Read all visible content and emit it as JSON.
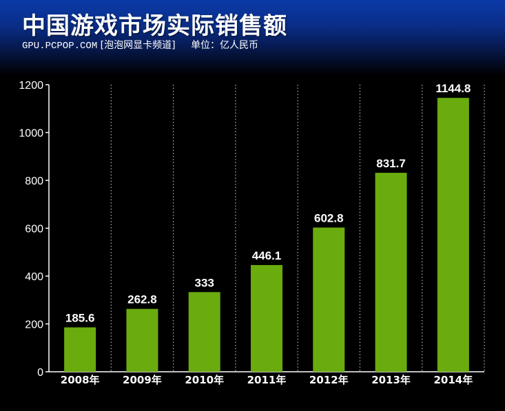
{
  "header": {
    "title": "中国游戏市场实际销售额",
    "source": "GPU.PCPOP.COM",
    "channel": "[泡泡网显卡频道]",
    "unit": "单位：亿人民币"
  },
  "colors": {
    "bar": "#6aab0e",
    "header_blue": "#0a3aa8",
    "background": "#000000"
  },
  "chart_data": {
    "type": "bar",
    "title": "中国游戏市场实际销售额",
    "unit": "单位：亿人民币",
    "categories": [
      "2008年",
      "2009年",
      "2010年",
      "2011年",
      "2012年",
      "2013年",
      "2014年"
    ],
    "values": [
      185.6,
      262.8,
      333,
      446.1,
      602.8,
      831.7,
      1144.8
    ],
    "value_labels": [
      "185.6",
      "262.8",
      "333",
      "446.1",
      "602.8",
      "831.7",
      "1144.8"
    ],
    "yticks": [
      0,
      200,
      400,
      600,
      800,
      1000,
      1200
    ],
    "ylim": [
      0,
      1200
    ],
    "grid": "vertical dotted",
    "legend": "none"
  }
}
